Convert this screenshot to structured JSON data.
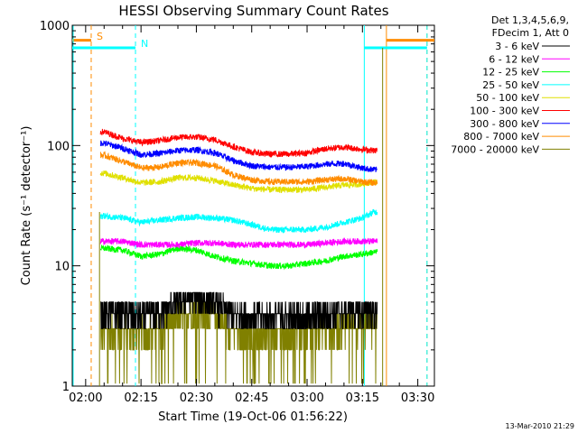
{
  "chart_data": {
    "type": "line",
    "title": "HESSI Observing Summary Count Rates",
    "xlabel": "Start Time (19-Oct-06 01:56:22)",
    "ylabel": "Count Rate (s⁻¹ detector⁻¹)",
    "yscale": "log",
    "ylim": [
      1,
      1000
    ],
    "xlim": [
      "01:56:22",
      "03:34:30"
    ],
    "x_ticks": [
      "02:00",
      "02:15",
      "02:30",
      "02:45",
      "03:00",
      "03:15",
      "03:30"
    ],
    "y_ticks": [
      "1",
      "10",
      "100",
      "1000"
    ],
    "legend_header": [
      "Det 1,3,4,5,6,9,",
      "FDecim 1, Att 0"
    ],
    "legend_position": "right",
    "footer": "13-Mar-2010 21:29",
    "series": [
      {
        "name": "3 - 6 keV",
        "color": "#000000",
        "x": [
          "02:05",
          "02:10",
          "02:15",
          "02:20",
          "02:25",
          "02:30",
          "02:35",
          "02:40",
          "02:45",
          "02:50",
          "02:55",
          "03:00",
          "03:05",
          "03:10",
          "03:15",
          "03:18"
        ],
        "y": [
          4.2,
          4.1,
          3.8,
          4.1,
          5.0,
          5.6,
          4.8,
          4.0,
          3.8,
          3.8,
          3.8,
          3.8,
          4.0,
          4.2,
          4.2,
          4.2
        ]
      },
      {
        "name": "6 - 12 keV",
        "color": "#ff00ff",
        "x": [
          "02:05",
          "02:10",
          "02:15",
          "02:20",
          "02:25",
          "02:30",
          "02:35",
          "02:40",
          "02:45",
          "02:50",
          "02:55",
          "03:00",
          "03:05",
          "03:10",
          "03:15",
          "03:18"
        ],
        "y": [
          16,
          16,
          15,
          15,
          15,
          15.5,
          15.5,
          15,
          15,
          15,
          15,
          15,
          15.5,
          16,
          16,
          16
        ]
      },
      {
        "name": "12 - 25 keV",
        "color": "#00ff00",
        "x": [
          "02:05",
          "02:10",
          "02:15",
          "02:20",
          "02:25",
          "02:30",
          "02:35",
          "02:40",
          "02:45",
          "02:50",
          "02:55",
          "03:00",
          "03:05",
          "03:10",
          "03:15",
          "03:18"
        ],
        "y": [
          14,
          13.5,
          12,
          12.5,
          14,
          13.5,
          12,
          11,
          10.5,
          10,
          10,
          10.5,
          11,
          12,
          12.5,
          13
        ]
      },
      {
        "name": "25 - 50 keV",
        "color": "#00ffff",
        "x": [
          "02:05",
          "02:10",
          "02:15",
          "02:20",
          "02:25",
          "02:30",
          "02:35",
          "02:40",
          "02:45",
          "02:50",
          "02:55",
          "03:00",
          "03:05",
          "03:10",
          "03:15",
          "03:18"
        ],
        "y": [
          26,
          25,
          23,
          24,
          25,
          25.5,
          25,
          24,
          22,
          20,
          20,
          20,
          21,
          23,
          25,
          28
        ]
      },
      {
        "name": "50 - 100 keV",
        "color": "#e0e000",
        "x": [
          "02:05",
          "02:10",
          "02:15",
          "02:20",
          "02:25",
          "02:30",
          "02:35",
          "02:40",
          "02:45",
          "02:50",
          "02:55",
          "03:00",
          "03:05",
          "03:10",
          "03:15",
          "03:18"
        ],
        "y": [
          59,
          54,
          49,
          50,
          54,
          54,
          51,
          47,
          44,
          43,
          43,
          43,
          45,
          47,
          48,
          50
        ]
      },
      {
        "name": "100 - 300 keV",
        "color": "#ff0000",
        "x": [
          "02:05",
          "02:10",
          "02:15",
          "02:20",
          "02:25",
          "02:30",
          "02:35",
          "02:40",
          "02:45",
          "02:50",
          "02:55",
          "03:00",
          "03:05",
          "03:10",
          "03:15",
          "03:18"
        ],
        "y": [
          130,
          115,
          106,
          110,
          117,
          118,
          112,
          98,
          88,
          85,
          85,
          87,
          94,
          97,
          93,
          91
        ]
      },
      {
        "name": "300 - 800 keV",
        "color": "#0000ff",
        "x": [
          "02:05",
          "02:10",
          "02:15",
          "02:20",
          "02:25",
          "02:30",
          "02:35",
          "02:40",
          "02:45",
          "02:50",
          "02:55",
          "03:00",
          "03:05",
          "03:10",
          "03:15",
          "03:18"
        ],
        "y": [
          105,
          95,
          84,
          86,
          91,
          92,
          87,
          75,
          68,
          66,
          66,
          67,
          70,
          71,
          65,
          63
        ]
      },
      {
        "name": "800 - 7000 keV",
        "color": "#ff8c00",
        "x": [
          "02:05",
          "02:10",
          "02:15",
          "02:20",
          "02:25",
          "02:30",
          "02:35",
          "02:40",
          "02:45",
          "02:50",
          "02:55",
          "03:00",
          "03:05",
          "03:10",
          "03:15",
          "03:18"
        ],
        "y": [
          83,
          74,
          65,
          66,
          72,
          72,
          68,
          57,
          52,
          50,
          50,
          50,
          52,
          53,
          50,
          49
        ]
      },
      {
        "name": "7000 - 20000 keV",
        "color": "#808000",
        "x": [
          "02:05",
          "02:10",
          "02:15",
          "02:20",
          "02:25",
          "02:30",
          "02:35",
          "02:40",
          "02:45",
          "02:50",
          "02:55",
          "03:00",
          "03:05",
          "03:10",
          "03:15",
          "03:18"
        ],
        "y": [
          2.9,
          2.9,
          2.8,
          3.0,
          3.7,
          4.3,
          3.7,
          2.9,
          2.6,
          2.7,
          2.8,
          2.9,
          3.0,
          3.1,
          3.3,
          3.3
        ]
      }
    ],
    "annotations": [
      {
        "text": "S",
        "color": "#ff8c00"
      },
      {
        "text": "N",
        "color": "#00ffff"
      }
    ],
    "markers": {
      "saa_orange": {
        "color": "#ff8c00",
        "level": 750,
        "intervals": [
          [
            "01:56:22",
            "02:01:30"
          ],
          [
            "03:21:30",
            "03:34:30"
          ]
        ],
        "edges": [
          "02:01:30",
          "03:21:30",
          "03:32:30"
        ]
      },
      "night_cyan": {
        "color": "#00ffff",
        "level": 650,
        "intervals": [
          [
            "01:56:22",
            "02:13:30"
          ],
          [
            "03:15:30",
            "03:32:30"
          ]
        ],
        "edges": [
          "02:13:30",
          "03:15:30",
          "03:32:30"
        ]
      },
      "data_span": [
        "02:04:00",
        "03:19:00"
      ]
    }
  }
}
